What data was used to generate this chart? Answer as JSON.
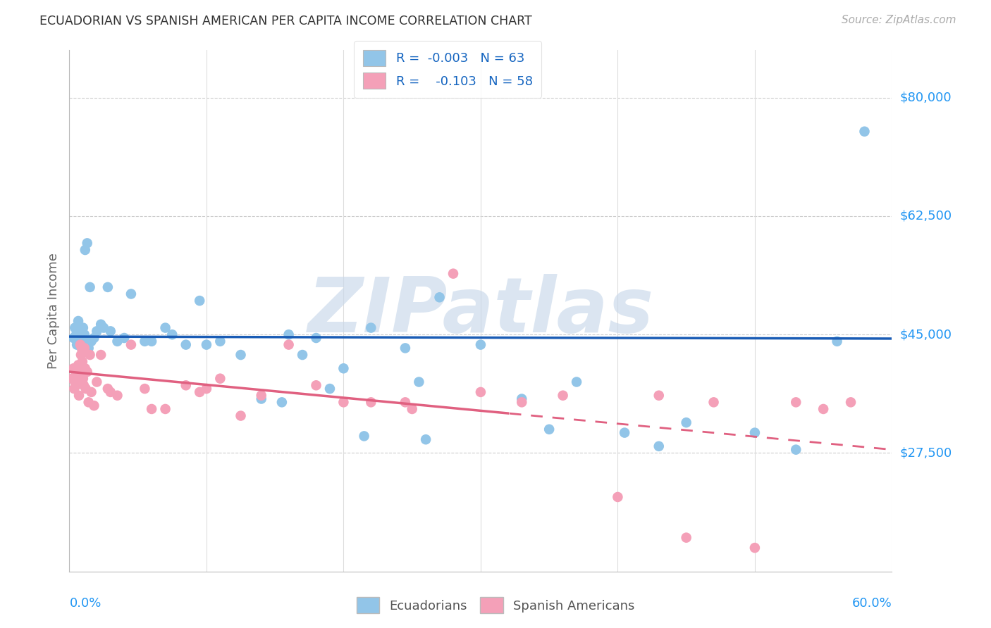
{
  "title": "ECUADORIAN VS SPANISH AMERICAN PER CAPITA INCOME CORRELATION CHART",
  "source": "Source: ZipAtlas.com",
  "ylabel": "Per Capita Income",
  "xmin": 0.0,
  "xmax": 60.0,
  "ymin": 10000,
  "ymax": 87000,
  "yticks": [
    27500,
    45000,
    62500,
    80000
  ],
  "ytick_labels": [
    "$27,500",
    "$45,000",
    "$62,500",
    "$80,000"
  ],
  "legend_r1": "R = -0.003",
  "legend_n1": "N = 63",
  "legend_r2": "R =  -0.103",
  "legend_n2": "N = 58",
  "blue_color": "#92C5E8",
  "pink_color": "#F4A0B8",
  "blue_line_color": "#1A5CB5",
  "pink_line_color": "#E06080",
  "blue_label": "Ecuadorians",
  "pink_label": "Spanish Americans",
  "watermark": "ZIPatlas",
  "watermark_color": "#C8D8EA",
  "blue_line_y0": 44700,
  "blue_line_y1": 44400,
  "pink_line_y0": 39500,
  "pink_line_y1": 28000,
  "pink_line_solid_end_x": 32.0,
  "blue_dots_x": [
    0.3,
    0.4,
    0.5,
    0.55,
    0.6,
    0.65,
    0.7,
    0.75,
    0.8,
    0.85,
    0.9,
    0.95,
    1.0,
    1.05,
    1.1,
    1.15,
    1.2,
    1.3,
    1.4,
    1.5,
    1.6,
    1.8,
    2.0,
    2.3,
    2.8,
    3.5,
    4.5,
    5.5,
    7.0,
    8.5,
    9.5,
    11.0,
    12.5,
    14.0,
    16.0,
    18.0,
    20.0,
    22.0,
    24.5,
    27.0,
    30.0,
    33.0,
    37.0,
    40.5,
    45.0,
    50.0,
    53.0,
    56.0,
    58.0,
    10.0,
    15.5,
    6.0,
    3.0,
    17.0,
    25.5,
    7.5,
    4.0,
    2.5,
    19.0,
    21.5,
    26.0,
    35.0,
    43.0
  ],
  "blue_dots_y": [
    44500,
    46000,
    45000,
    43500,
    44000,
    47000,
    43500,
    44500,
    44000,
    45500,
    43000,
    45000,
    46000,
    44000,
    45000,
    57500,
    43500,
    58500,
    43000,
    52000,
    44000,
    44500,
    45500,
    46500,
    52000,
    44000,
    51000,
    44000,
    46000,
    43500,
    50000,
    44000,
    42000,
    35500,
    45000,
    44500,
    40000,
    46000,
    43000,
    50500,
    43500,
    35500,
    38000,
    30500,
    32000,
    30500,
    28000,
    44000,
    75000,
    43500,
    35000,
    44000,
    45500,
    42000,
    38000,
    45000,
    44500,
    46000,
    37000,
    30000,
    29500,
    31000,
    28500
  ],
  "pink_dots_x": [
    0.2,
    0.3,
    0.35,
    0.4,
    0.45,
    0.5,
    0.55,
    0.6,
    0.65,
    0.7,
    0.75,
    0.8,
    0.85,
    0.9,
    0.95,
    1.0,
    1.05,
    1.1,
    1.15,
    1.2,
    1.3,
    1.4,
    1.5,
    1.6,
    1.8,
    2.0,
    2.3,
    2.8,
    3.5,
    4.5,
    5.5,
    7.0,
    8.5,
    9.5,
    11.0,
    12.5,
    14.0,
    16.0,
    18.0,
    20.0,
    22.0,
    25.0,
    28.0,
    30.0,
    33.0,
    36.0,
    40.0,
    43.0,
    45.0,
    47.0,
    50.0,
    53.0,
    55.0,
    57.0,
    3.0,
    6.0,
    10.0,
    24.5
  ],
  "pink_dots_y": [
    38500,
    40000,
    37000,
    38000,
    39000,
    37500,
    38000,
    39500,
    40500,
    36000,
    38000,
    43500,
    42000,
    43000,
    41000,
    38500,
    37500,
    43000,
    40000,
    37000,
    39500,
    35000,
    42000,
    36500,
    34500,
    38000,
    42000,
    37000,
    36000,
    43500,
    37000,
    34000,
    37500,
    36500,
    38500,
    33000,
    36000,
    43500,
    37500,
    35000,
    35000,
    34000,
    54000,
    36500,
    35000,
    36000,
    21000,
    36000,
    15000,
    35000,
    13500,
    35000,
    34000,
    35000,
    36500,
    34000,
    37000,
    35000
  ]
}
